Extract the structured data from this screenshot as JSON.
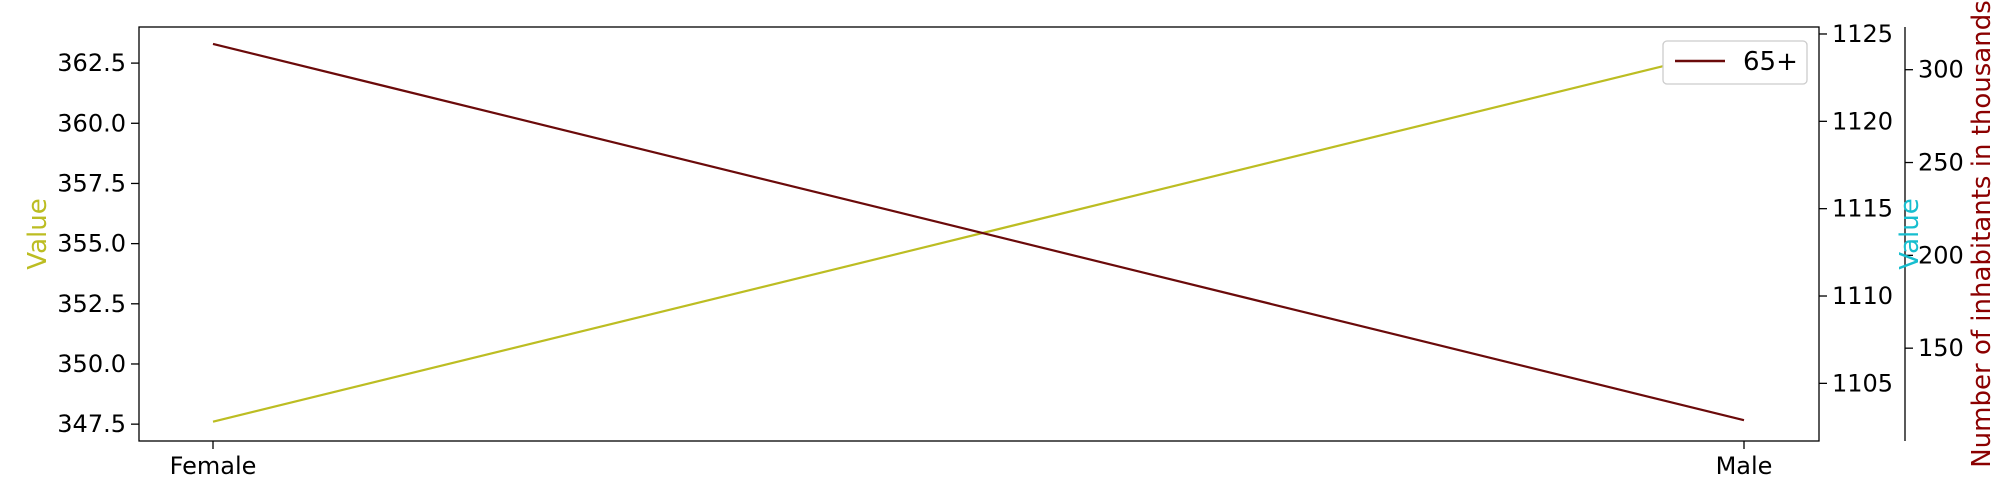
{
  "chart_data": {
    "type": "line",
    "categories": [
      "Female",
      "Male"
    ],
    "axes": {
      "left": {
        "label": "Value",
        "color": "#bcbd22",
        "ylim": [
          346.8,
          364.0
        ],
        "ticks": [
          "347.5",
          "350.0",
          "352.5",
          "355.0",
          "357.5",
          "360.0",
          "362.5"
        ]
      },
      "right1": {
        "label": "Value",
        "color": "#17becf",
        "ylim": [
          1101.7,
          1125.4
        ],
        "ticks": [
          "1105",
          "1110",
          "1115",
          "1120",
          "1125"
        ]
      },
      "right2": {
        "label": "Number of inhabitants in thousands",
        "color": "#8b0000",
        "ylim": [
          100,
          323
        ],
        "ticks": [
          "150",
          "200",
          "250",
          "300"
        ]
      }
    },
    "series": [
      {
        "axis": "left",
        "color": "#bcbd22",
        "values": [
          347.6,
          363.2
        ]
      },
      {
        "name": "65+",
        "axis": "right2",
        "color": "#6b0a0a",
        "values": [
          313.9,
          111.2
        ]
      }
    ],
    "legend": {
      "placement": "top-right",
      "entries": [
        "65+"
      ]
    },
    "grid": false
  }
}
